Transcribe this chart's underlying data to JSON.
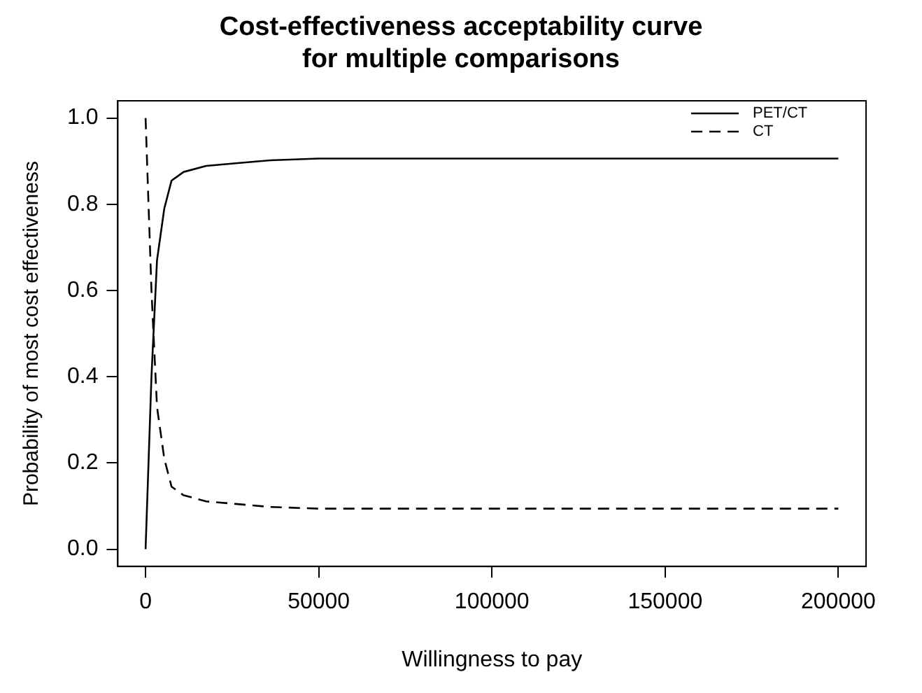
{
  "chart_data": {
    "type": "line",
    "title": "Cost-effectiveness acceptability curve\nfor multiple comparisons",
    "xlabel": "Willingness to pay",
    "ylabel": "Probability of most cost effectiveness",
    "x": [
      0,
      1700,
      3300,
      5400,
      7500,
      11000,
      17500,
      26000,
      36000,
      50000,
      100000,
      150000,
      200000
    ],
    "series": [
      {
        "name": "PET/CT",
        "color": "#000000",
        "line_style": "solid",
        "values": [
          0,
          0.4,
          0.67,
          0.79,
          0.855,
          0.875,
          0.889,
          0.895,
          0.902,
          0.906,
          0.906,
          0.906,
          0.906
        ]
      },
      {
        "name": "CT",
        "color": "#000000",
        "line_style": "dashed",
        "values": [
          1,
          0.6,
          0.33,
          0.21,
          0.145,
          0.125,
          0.111,
          0.105,
          0.098,
          0.094,
          0.094,
          0.094,
          0.094
        ]
      }
    ],
    "xlim": [
      -8000,
      208000
    ],
    "xticks": [
      0,
      50000,
      100000,
      150000,
      200000
    ],
    "ylim": [
      -0.04,
      1.04
    ],
    "yticks": [
      {
        "value": 0,
        "label": "0.0"
      },
      {
        "value": 0.2,
        "label": "0.2"
      },
      {
        "value": 0.4,
        "label": "0.4"
      },
      {
        "value": 0.6,
        "label": "0.6"
      },
      {
        "value": 0.8,
        "label": "0.8"
      },
      {
        "value": 1,
        "label": "1.0"
      }
    ],
    "grid": false,
    "legend": "top right",
    "marker": "none"
  }
}
